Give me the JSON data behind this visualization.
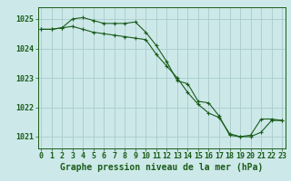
{
  "background_color": "#cce8e8",
  "grid_color": "#aacccc",
  "line_color": "#1a5c1a",
  "xlabel": "Graphe pression niveau de la mer (hPa)",
  "xlabel_fontsize": 7,
  "tick_fontsize": 6,
  "yticks": [
    1021,
    1022,
    1023,
    1024,
    1025
  ],
  "xticks": [
    0,
    1,
    2,
    3,
    4,
    5,
    6,
    7,
    8,
    9,
    10,
    11,
    12,
    13,
    14,
    15,
    16,
    17,
    18,
    19,
    20,
    21,
    22,
    23
  ],
  "xlim": [
    -0.3,
    23.3
  ],
  "ylim": [
    1020.6,
    1025.4
  ],
  "series1_x": [
    0,
    1,
    2,
    3,
    4,
    5,
    6,
    7,
    8,
    9,
    10,
    11,
    12,
    13,
    14,
    15,
    16,
    17,
    18,
    19,
    20,
    21,
    22,
    23
  ],
  "series1_y": [
    1024.65,
    1024.65,
    1024.7,
    1025.0,
    1025.05,
    1024.95,
    1024.85,
    1024.85,
    1024.85,
    1024.9,
    1024.55,
    1024.1,
    1023.55,
    1022.9,
    1022.8,
    1022.2,
    1022.15,
    1021.7,
    1021.05,
    1021.0,
    1021.0,
    1021.15,
    1021.55,
    1021.55
  ],
  "series2_x": [
    0,
    1,
    2,
    3,
    4,
    5,
    6,
    7,
    8,
    9,
    10,
    11,
    12,
    13,
    14,
    15,
    16,
    17,
    18,
    19,
    20,
    21,
    22,
    23
  ],
  "series2_y": [
    1024.65,
    1024.65,
    1024.7,
    1024.75,
    1024.65,
    1024.55,
    1024.5,
    1024.45,
    1024.4,
    1024.35,
    1024.3,
    1023.8,
    1023.4,
    1023.0,
    1022.5,
    1022.1,
    1021.8,
    1021.65,
    1021.1,
    1021.0,
    1021.05,
    1021.6,
    1021.6,
    1021.55
  ]
}
